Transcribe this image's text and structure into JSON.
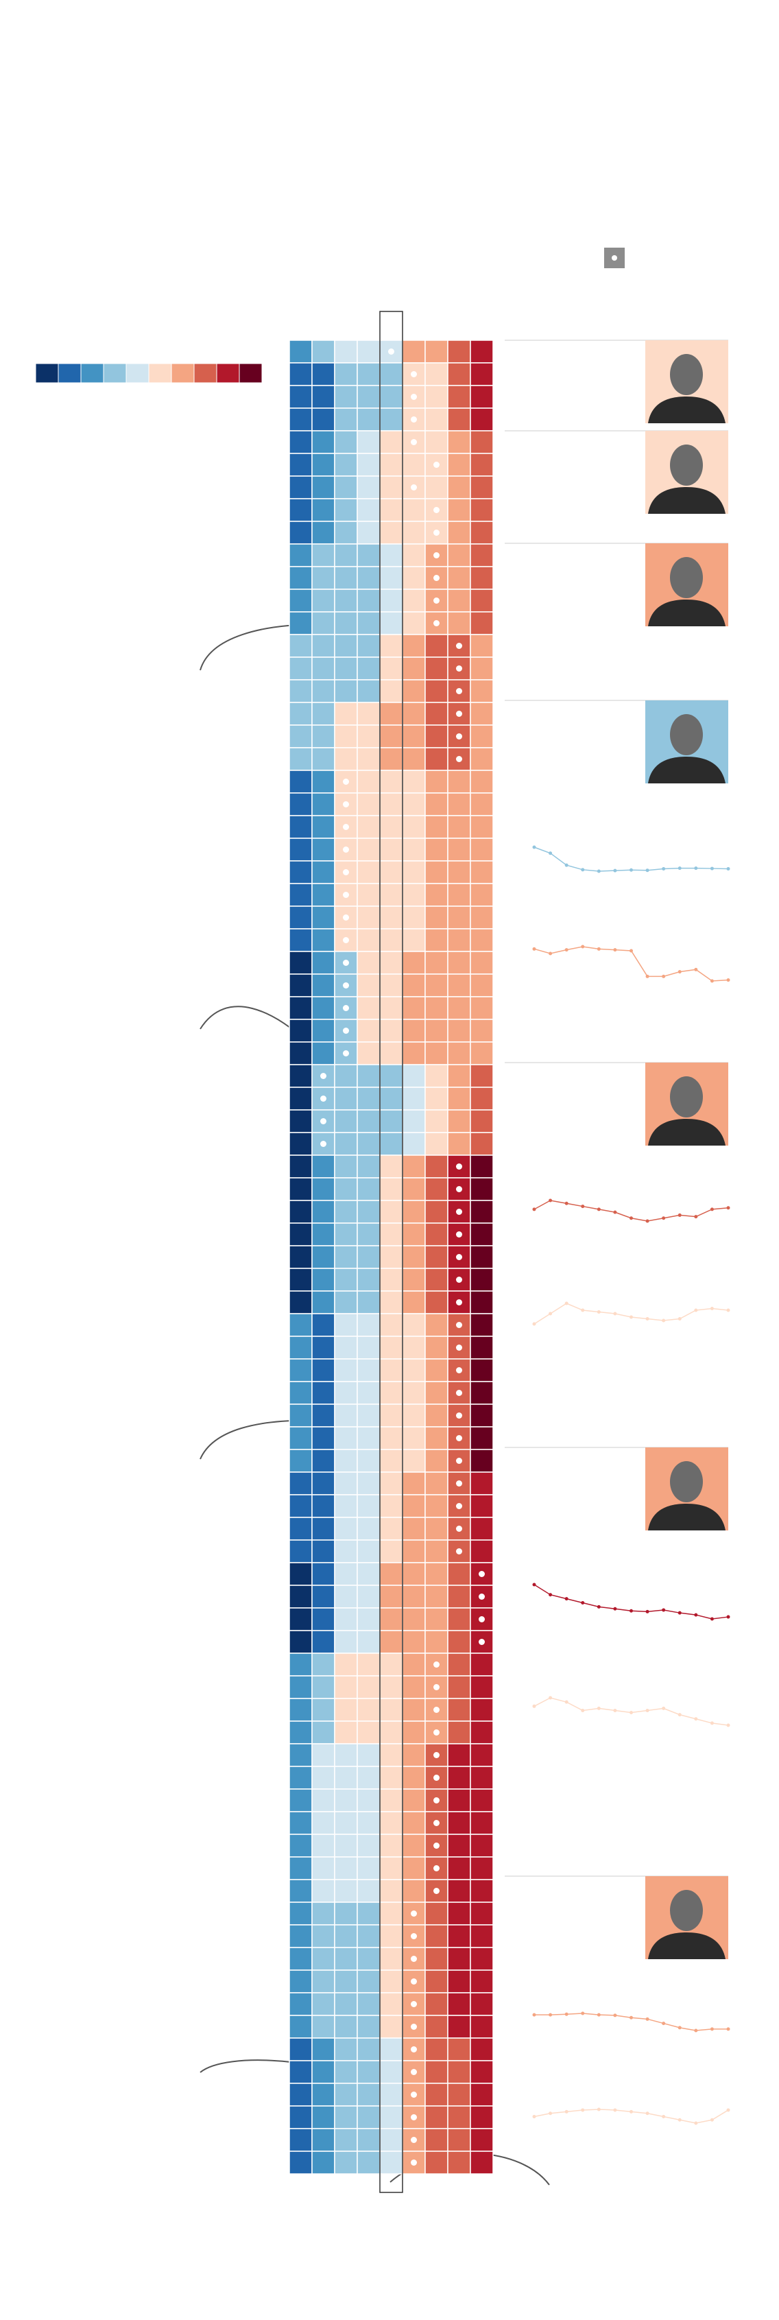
{
  "chart_data": {
    "type": "heatmap",
    "palette": [
      "#0b3168",
      "#2166ac",
      "#4393c3",
      "#92c5de",
      "#d1e5f0",
      "#fddbc7",
      "#f4a582",
      "#d6604d",
      "#b2182b",
      "#67001f"
    ],
    "rows": [
      [
        2,
        3,
        4,
        4,
        4,
        6,
        6,
        7,
        8
      ],
      [
        1,
        1,
        3,
        3,
        3,
        5,
        5,
        7,
        8
      ],
      [
        1,
        1,
        3,
        3,
        3,
        5,
        5,
        7,
        8
      ],
      [
        1,
        1,
        3,
        3,
        3,
        5,
        5,
        7,
        8
      ],
      [
        1,
        2,
        3,
        4,
        5,
        5,
        5,
        6,
        7
      ],
      [
        1,
        2,
        3,
        4,
        5,
        5,
        5,
        6,
        7
      ],
      [
        1,
        2,
        3,
        4,
        5,
        5,
        5,
        6,
        7
      ],
      [
        1,
        2,
        3,
        4,
        5,
        5,
        5,
        6,
        7
      ],
      [
        1,
        2,
        3,
        4,
        5,
        5,
        5,
        6,
        7
      ],
      [
        2,
        3,
        3,
        3,
        4,
        5,
        6,
        6,
        7
      ],
      [
        2,
        3,
        3,
        3,
        4,
        5,
        6,
        6,
        7
      ],
      [
        2,
        3,
        3,
        3,
        4,
        5,
        6,
        6,
        7
      ],
      [
        2,
        3,
        3,
        3,
        4,
        5,
        6,
        6,
        7
      ],
      [
        3,
        3,
        3,
        3,
        5,
        6,
        7,
        7,
        6
      ],
      [
        3,
        3,
        3,
        3,
        5,
        6,
        7,
        7,
        6
      ],
      [
        3,
        3,
        3,
        3,
        5,
        6,
        7,
        7,
        6
      ],
      [
        3,
        3,
        5,
        5,
        6,
        6,
        7,
        7,
        6
      ],
      [
        3,
        3,
        5,
        5,
        6,
        6,
        7,
        7,
        6
      ],
      [
        3,
        3,
        5,
        5,
        6,
        6,
        7,
        7,
        6
      ],
      [
        1,
        2,
        5,
        5,
        5,
        5,
        6,
        6,
        6
      ],
      [
        1,
        2,
        5,
        5,
        5,
        5,
        6,
        6,
        6
      ],
      [
        1,
        2,
        5,
        5,
        5,
        5,
        6,
        6,
        6
      ],
      [
        1,
        2,
        5,
        5,
        5,
        5,
        6,
        6,
        6
      ],
      [
        1,
        2,
        5,
        5,
        5,
        5,
        6,
        6,
        6
      ],
      [
        1,
        2,
        5,
        5,
        5,
        5,
        6,
        6,
        6
      ],
      [
        1,
        2,
        5,
        5,
        5,
        5,
        6,
        6,
        6
      ],
      [
        1,
        2,
        5,
        5,
        5,
        5,
        6,
        6,
        6
      ],
      [
        0,
        2,
        3,
        5,
        5,
        6,
        6,
        6,
        6
      ],
      [
        0,
        2,
        3,
        5,
        5,
        6,
        6,
        6,
        6
      ],
      [
        0,
        2,
        3,
        5,
        5,
        6,
        6,
        6,
        6
      ],
      [
        0,
        2,
        3,
        5,
        5,
        6,
        6,
        6,
        6
      ],
      [
        0,
        2,
        3,
        5,
        5,
        6,
        6,
        6,
        6
      ],
      [
        0,
        3,
        3,
        3,
        3,
        4,
        5,
        6,
        7
      ],
      [
        0,
        3,
        3,
        3,
        3,
        4,
        5,
        6,
        7
      ],
      [
        0,
        3,
        3,
        3,
        3,
        4,
        5,
        6,
        7
      ],
      [
        0,
        3,
        3,
        3,
        3,
        4,
        5,
        6,
        7
      ],
      [
        0,
        2,
        3,
        3,
        5,
        6,
        7,
        8,
        9
      ],
      [
        0,
        2,
        3,
        3,
        5,
        6,
        7,
        8,
        9
      ],
      [
        0,
        2,
        3,
        3,
        5,
        6,
        7,
        8,
        9
      ],
      [
        0,
        2,
        3,
        3,
        5,
        6,
        7,
        8,
        9
      ],
      [
        0,
        2,
        3,
        3,
        5,
        6,
        7,
        8,
        9
      ],
      [
        0,
        2,
        3,
        3,
        5,
        6,
        7,
        8,
        9
      ],
      [
        0,
        2,
        3,
        3,
        5,
        6,
        7,
        8,
        9
      ],
      [
        2,
        1,
        4,
        4,
        5,
        5,
        6,
        7,
        9
      ],
      [
        2,
        1,
        4,
        4,
        5,
        5,
        6,
        7,
        9
      ],
      [
        2,
        1,
        4,
        4,
        5,
        5,
        6,
        7,
        9
      ],
      [
        2,
        1,
        4,
        4,
        5,
        5,
        6,
        7,
        9
      ],
      [
        2,
        1,
        4,
        4,
        5,
        5,
        6,
        7,
        9
      ],
      [
        2,
        1,
        4,
        4,
        5,
        5,
        6,
        7,
        9
      ],
      [
        2,
        1,
        4,
        4,
        5,
        5,
        6,
        7,
        9
      ],
      [
        1,
        1,
        4,
        4,
        5,
        6,
        6,
        7,
        8
      ],
      [
        1,
        1,
        4,
        4,
        5,
        6,
        6,
        7,
        8
      ],
      [
        1,
        1,
        4,
        4,
        5,
        6,
        6,
        7,
        8
      ],
      [
        1,
        1,
        4,
        4,
        5,
        6,
        6,
        7,
        8
      ],
      [
        0,
        1,
        4,
        4,
        6,
        6,
        6,
        7,
        8
      ],
      [
        0,
        1,
        4,
        4,
        6,
        6,
        6,
        7,
        8
      ],
      [
        0,
        1,
        4,
        4,
        6,
        6,
        6,
        7,
        8
      ],
      [
        0,
        1,
        4,
        4,
        6,
        6,
        6,
        7,
        8
      ],
      [
        2,
        3,
        5,
        5,
        5,
        6,
        6,
        7,
        8
      ],
      [
        2,
        3,
        5,
        5,
        5,
        6,
        6,
        7,
        8
      ],
      [
        2,
        3,
        5,
        5,
        5,
        6,
        6,
        7,
        8
      ],
      [
        2,
        3,
        5,
        5,
        5,
        6,
        6,
        7,
        8
      ],
      [
        2,
        4,
        4,
        4,
        5,
        6,
        7,
        8,
        8
      ],
      [
        2,
        4,
        4,
        4,
        5,
        6,
        7,
        8,
        8
      ],
      [
        2,
        4,
        4,
        4,
        5,
        6,
        7,
        8,
        8
      ],
      [
        2,
        4,
        4,
        4,
        5,
        6,
        7,
        8,
        8
      ],
      [
        2,
        4,
        4,
        4,
        5,
        6,
        7,
        8,
        8
      ],
      [
        2,
        4,
        4,
        4,
        5,
        6,
        7,
        8,
        8
      ],
      [
        2,
        4,
        4,
        4,
        5,
        6,
        7,
        8,
        8
      ],
      [
        2,
        3,
        3,
        3,
        5,
        6,
        7,
        8,
        8
      ],
      [
        2,
        3,
        3,
        3,
        5,
        6,
        7,
        8,
        8
      ],
      [
        2,
        3,
        3,
        3,
        5,
        6,
        7,
        8,
        8
      ],
      [
        2,
        3,
        3,
        3,
        5,
        6,
        7,
        8,
        8
      ],
      [
        2,
        3,
        3,
        3,
        5,
        6,
        7,
        8,
        8
      ],
      [
        2,
        3,
        3,
        3,
        5,
        6,
        7,
        8,
        8
      ],
      [
        1,
        2,
        3,
        3,
        4,
        6,
        7,
        7,
        8
      ],
      [
        1,
        2,
        3,
        3,
        4,
        6,
        7,
        7,
        8
      ],
      [
        1,
        2,
        3,
        3,
        4,
        6,
        7,
        7,
        8
      ],
      [
        1,
        2,
        3,
        3,
        4,
        6,
        7,
        7,
        8
      ],
      [
        1,
        2,
        3,
        3,
        4,
        6,
        7,
        7,
        8
      ],
      [
        1,
        2,
        3,
        3,
        4,
        6,
        7,
        7,
        8
      ]
    ],
    "markers": [
      4,
      5,
      5,
      5,
      5,
      6,
      5,
      6,
      6,
      6,
      6,
      6,
      6,
      7,
      7,
      7,
      7,
      7,
      7,
      2,
      2,
      2,
      2,
      2,
      2,
      2,
      2,
      2,
      2,
      2,
      2,
      2,
      1,
      1,
      1,
      1,
      7,
      7,
      7,
      7,
      7,
      7,
      7,
      7,
      7,
      7,
      7,
      7,
      7,
      7,
      7,
      7,
      7,
      7,
      8,
      8,
      8,
      8,
      6,
      6,
      6,
      6,
      6,
      6,
      6,
      6,
      6,
      6,
      6,
      5,
      5,
      5,
      5,
      5,
      5,
      5,
      5,
      5,
      5,
      5,
      5
    ],
    "median_column": 4,
    "portraits": [
      "#fddbc7",
      "#fddbc7",
      "#f4a582",
      "#92c5de",
      "#f4a582",
      "#f4a582",
      "#f4a582"
    ],
    "sparklines": [
      {
        "color": "#92c5de",
        "values": [
          0.9,
          0.7,
          0.3,
          0.15,
          0.1,
          0.12,
          0.14,
          0.13,
          0.18,
          0.2,
          0.2,
          0.19,
          0.18
        ]
      },
      {
        "color": "#f4a582",
        "values": [
          0.8,
          0.7,
          0.78,
          0.85,
          0.8,
          0.78,
          0.76,
          0.2,
          0.2,
          0.3,
          0.35,
          0.1,
          0.12
        ]
      },
      {
        "color": "#d6604d",
        "values": [
          0.6,
          0.9,
          0.8,
          0.7,
          0.6,
          0.5,
          0.3,
          0.2,
          0.3,
          0.4,
          0.35,
          0.6,
          0.65
        ]
      },
      {
        "color": "#fddbc7",
        "values": [
          0.3,
          0.6,
          0.9,
          0.7,
          0.65,
          0.6,
          0.5,
          0.45,
          0.4,
          0.45,
          0.7,
          0.75,
          0.7
        ]
      },
      {
        "color": "#b2182b",
        "values": [
          0.95,
          0.7,
          0.6,
          0.5,
          0.4,
          0.35,
          0.3,
          0.28,
          0.32,
          0.25,
          0.2,
          0.1,
          0.15
        ]
      },
      {
        "color": "#fddbc7",
        "values": [
          0.6,
          0.8,
          0.7,
          0.5,
          0.55,
          0.5,
          0.45,
          0.5,
          0.55,
          0.4,
          0.3,
          0.2,
          0.15
        ]
      },
      {
        "color": "#f4a582",
        "values": [
          0.8,
          0.8,
          0.82,
          0.85,
          0.8,
          0.78,
          0.7,
          0.65,
          0.5,
          0.35,
          0.25,
          0.3,
          0.3
        ]
      },
      {
        "color": "#fddbc7",
        "values": [
          0.4,
          0.5,
          0.55,
          0.6,
          0.62,
          0.6,
          0.55,
          0.5,
          0.4,
          0.3,
          0.2,
          0.3,
          0.6
        ]
      }
    ]
  }
}
